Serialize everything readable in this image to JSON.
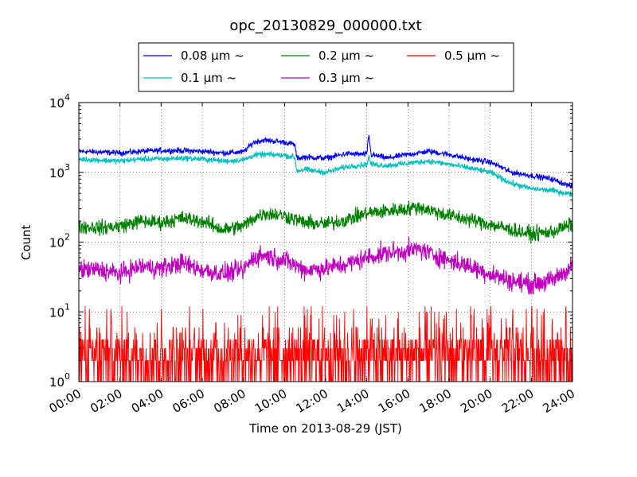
{
  "chart_data": {
    "type": "line",
    "title": "opc_20130829_000000.txt",
    "xlabel": "Time on 2013-08-29 (JST)",
    "ylabel": "Count",
    "yscale": "log",
    "xlim": [
      "00:00",
      "24:00"
    ],
    "ylim": [
      1,
      10000
    ],
    "x_ticks": [
      "00:00",
      "02:00",
      "04:00",
      "06:00",
      "08:00",
      "10:00",
      "12:00",
      "14:00",
      "16:00",
      "18:00",
      "20:00",
      "22:00",
      "24:00"
    ],
    "y_ticks": [
      {
        "value": 1,
        "base": "10",
        "exp": "0"
      },
      {
        "value": 10,
        "base": "10",
        "exp": "1"
      },
      {
        "value": 100,
        "base": "10",
        "exp": "2"
      },
      {
        "value": 1000,
        "base": "10",
        "exp": "3"
      },
      {
        "value": 10000,
        "base": "10",
        "exp": "4"
      }
    ],
    "grid": true,
    "legend_position": "top",
    "x_unit": "hours",
    "series": [
      {
        "name": "0.08 μm ~",
        "color": "#0000ff",
        "noise": 0.035,
        "points": [
          [
            0,
            2000
          ],
          [
            1,
            1950
          ],
          [
            2,
            1900
          ],
          [
            3,
            2000
          ],
          [
            4,
            2050
          ],
          [
            5,
            2050
          ],
          [
            6,
            2000
          ],
          [
            7,
            1900
          ],
          [
            8,
            1950
          ],
          [
            8.5,
            2700
          ],
          [
            9,
            2900
          ],
          [
            9.5,
            2800
          ],
          [
            10,
            2700
          ],
          [
            10.5,
            2500
          ],
          [
            10.6,
            1600
          ],
          [
            11,
            1650
          ],
          [
            12,
            1600
          ],
          [
            13,
            1850
          ],
          [
            14,
            1800
          ],
          [
            14.1,
            3600
          ],
          [
            14.2,
            1800
          ],
          [
            15,
            1600
          ],
          [
            16,
            1800
          ],
          [
            17,
            2000
          ],
          [
            18,
            1800
          ],
          [
            19,
            1550
          ],
          [
            20,
            1400
          ],
          [
            20.5,
            1200
          ],
          [
            21,
            1000
          ],
          [
            22,
            900
          ],
          [
            23,
            800
          ],
          [
            24,
            620
          ]
        ]
      },
      {
        "name": "0.1 μm ~",
        "color": "#00bfbf",
        "noise": 0.035,
        "points": [
          [
            0,
            1550
          ],
          [
            1,
            1500
          ],
          [
            2,
            1450
          ],
          [
            3,
            1550
          ],
          [
            4,
            1550
          ],
          [
            5,
            1600
          ],
          [
            6,
            1550
          ],
          [
            7,
            1450
          ],
          [
            8,
            1500
          ],
          [
            8.5,
            1750
          ],
          [
            9,
            1800
          ],
          [
            10,
            1750
          ],
          [
            10.5,
            1650
          ],
          [
            10.6,
            1050
          ],
          [
            11,
            1100
          ],
          [
            12,
            1000
          ],
          [
            13,
            1200
          ],
          [
            14,
            1300
          ],
          [
            14.1,
            1700
          ],
          [
            14.2,
            1300
          ],
          [
            15,
            1250
          ],
          [
            16,
            1350
          ],
          [
            17,
            1450
          ],
          [
            18,
            1300
          ],
          [
            19,
            1150
          ],
          [
            20,
            1000
          ],
          [
            21,
            700
          ],
          [
            22,
            580
          ],
          [
            23,
            550
          ],
          [
            24,
            480
          ]
        ]
      },
      {
        "name": "0.2 μm ~",
        "color": "#008000",
        "noise": 0.09,
        "points": [
          [
            0,
            170
          ],
          [
            1,
            160
          ],
          [
            2,
            170
          ],
          [
            3,
            200
          ],
          [
            4,
            190
          ],
          [
            5,
            220
          ],
          [
            6,
            200
          ],
          [
            7,
            150
          ],
          [
            8,
            170
          ],
          [
            8.5,
            220
          ],
          [
            9,
            260
          ],
          [
            10,
            240
          ],
          [
            11,
            190
          ],
          [
            12,
            180
          ],
          [
            13,
            210
          ],
          [
            14,
            260
          ],
          [
            15,
            280
          ],
          [
            16,
            300
          ],
          [
            16.5,
            320
          ],
          [
            17,
            290
          ],
          [
            18,
            240
          ],
          [
            19,
            210
          ],
          [
            20,
            180
          ],
          [
            21,
            150
          ],
          [
            22,
            130
          ],
          [
            23,
            140
          ],
          [
            24,
            180
          ]
        ]
      },
      {
        "name": "0.3 μm ~",
        "color": "#bf00bf",
        "noise": 0.12,
        "points": [
          [
            0,
            40
          ],
          [
            1,
            40
          ],
          [
            2,
            35
          ],
          [
            3,
            45
          ],
          [
            4,
            42
          ],
          [
            5,
            50
          ],
          [
            6,
            40
          ],
          [
            7,
            35
          ],
          [
            8,
            40
          ],
          [
            8.5,
            60
          ],
          [
            9,
            65
          ],
          [
            10,
            55
          ],
          [
            11,
            40
          ],
          [
            12,
            42
          ],
          [
            13,
            48
          ],
          [
            14,
            60
          ],
          [
            15,
            70
          ],
          [
            16,
            75
          ],
          [
            16.5,
            80
          ],
          [
            17,
            70
          ],
          [
            18,
            55
          ],
          [
            19,
            45
          ],
          [
            20,
            35
          ],
          [
            21,
            28
          ],
          [
            22,
            25
          ],
          [
            23,
            28
          ],
          [
            24,
            45
          ]
        ]
      },
      {
        "name": "0.5 μm ~",
        "color": "#ff0000",
        "noise": 0,
        "points": [
          [
            0,
            3
          ],
          [
            24,
            3
          ]
        ]
      }
    ]
  }
}
